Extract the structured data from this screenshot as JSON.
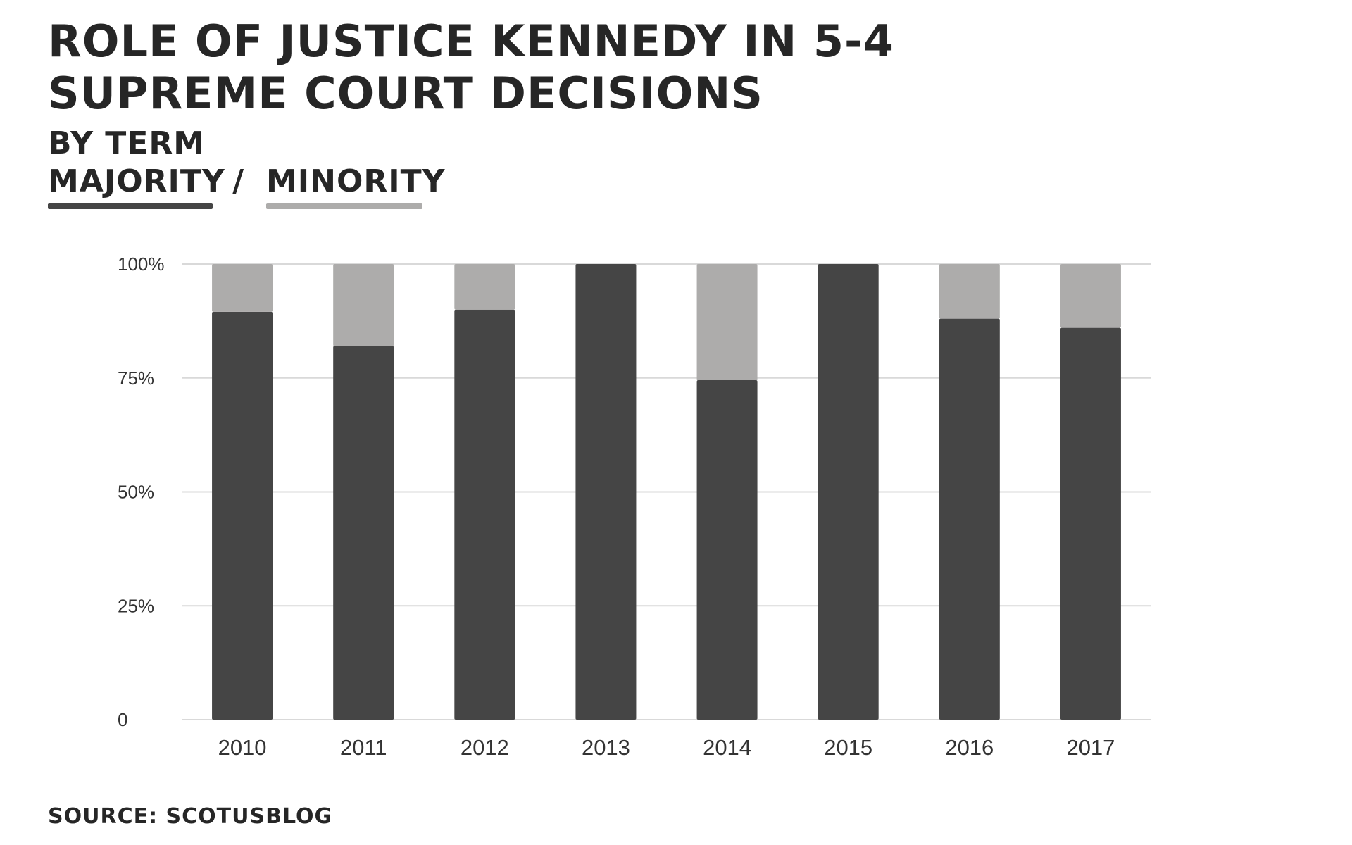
{
  "title": "ROLE OF JUSTICE KENNEDY IN 5-4 SUPREME COURT DECISIONS",
  "subtitle": "BY TERM",
  "legend": {
    "separator": "/"
  },
  "source": "SOURCE: SCOTUSBLOG",
  "colors": {
    "majority": "#454545",
    "minority": "#adacab",
    "grid": "#d9d9d9"
  },
  "chart_data": {
    "type": "bar",
    "stacked": true,
    "title": "ROLE OF JUSTICE KENNEDY IN 5-4 SUPREME COURT DECISIONS",
    "subtitle": "BY TERM",
    "categories": [
      "2010",
      "2011",
      "2012",
      "2013",
      "2014",
      "2015",
      "2016",
      "2017"
    ],
    "series": [
      {
        "name": "MAJORITY",
        "values": [
          89.5,
          82,
          90,
          100,
          74.5,
          100,
          88,
          86
        ]
      },
      {
        "name": "MINORITY",
        "values": [
          10.5,
          18,
          10,
          0,
          25.5,
          0,
          12,
          14
        ]
      }
    ],
    "ylim": [
      0,
      100
    ],
    "yticks": [
      0,
      25,
      50,
      75,
      100
    ],
    "ytick_labels": [
      "0",
      "25%",
      "50%",
      "75%",
      "100%"
    ],
    "grid": true,
    "legend_position": "top-left"
  }
}
